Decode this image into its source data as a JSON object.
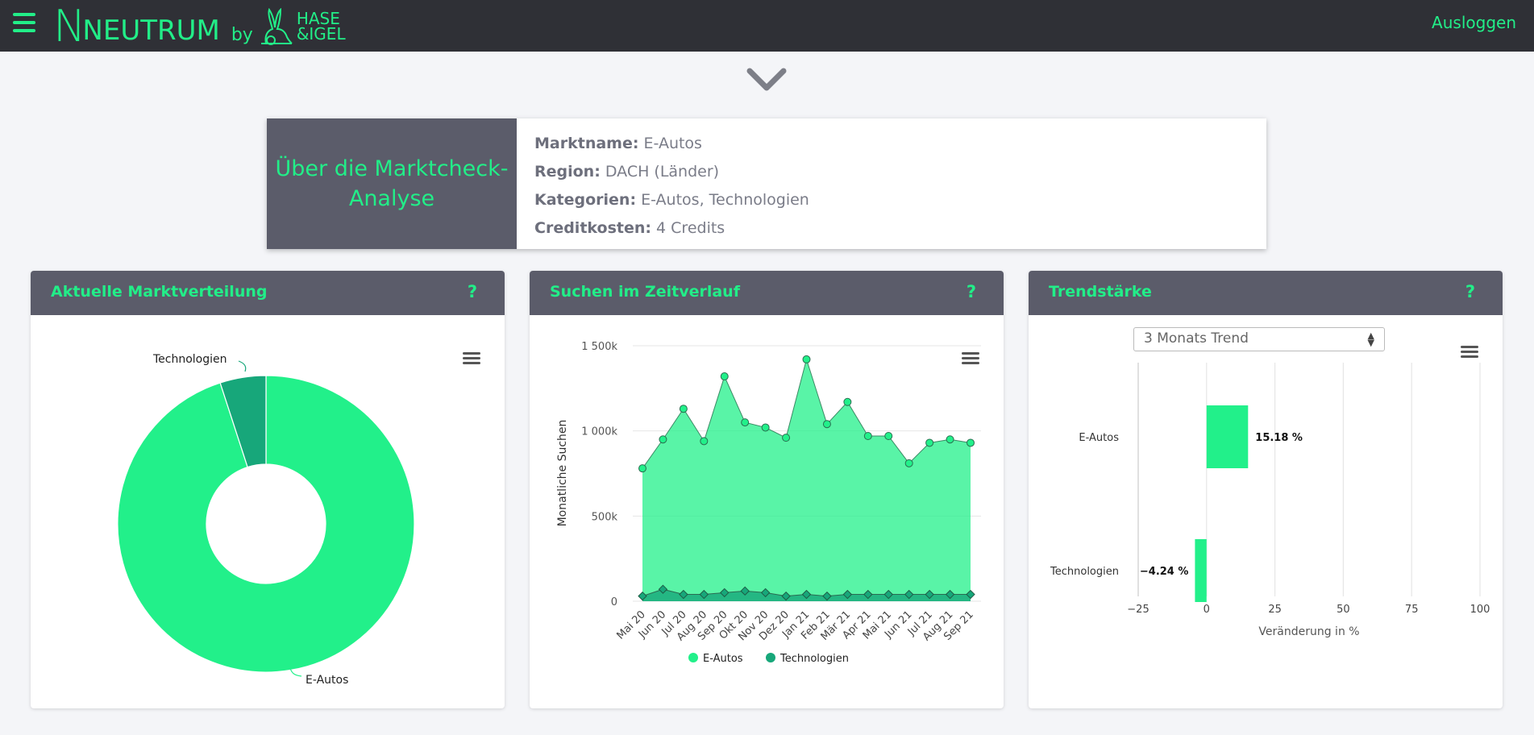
{
  "header": {
    "logo_letter": "N",
    "logo_word": "NEUTRUM",
    "logo_by": "by",
    "logo_partner_line1": "HASE",
    "logo_partner_line2": "&IGEL",
    "logout_label": "Ausloggen",
    "menu_icon": "hamburger-icon",
    "accent_color": "#22ee88",
    "bar_color": "#2f3036"
  },
  "info": {
    "title": "Über die Marktcheck-Analyse",
    "rows": [
      {
        "label": "Marktname:",
        "value": "E-Autos"
      },
      {
        "label": "Region:",
        "value": "DACH (Länder)"
      },
      {
        "label": "Kategorien:",
        "value": "E-Autos, Technologien"
      },
      {
        "label": "Creditkosten:",
        "value": "4 Credits"
      }
    ]
  },
  "panels": {
    "distribution": {
      "title": "Aktuelle Marktverteilung",
      "help": "?"
    },
    "searches": {
      "title": "Suchen im Zeitverlauf",
      "help": "?"
    },
    "trend": {
      "title": "Trendstärke",
      "help": "?",
      "select_value": "3 Monats Trend"
    }
  },
  "chart_data": [
    {
      "type": "pie",
      "categories": [
        "E-Autos",
        "Technologien"
      ],
      "values": [
        95,
        5
      ],
      "colors": [
        "#22f08a",
        "#17a77a"
      ]
    },
    {
      "type": "area",
      "categories": [
        "Mai 20",
        "Jun 20",
        "Jul 20",
        "Aug 20",
        "Sep 20",
        "Okt 20",
        "Nov 20",
        "Dez 20",
        "Jan 21",
        "Feb 21",
        "Mär 21",
        "Apr 21",
        "Mai 21",
        "Jun 21",
        "Jul 21",
        "Aug 21",
        "Sep 21"
      ],
      "series": [
        {
          "name": "E-Autos",
          "color": "#22f08a",
          "values": [
            780000,
            950000,
            1130000,
            940000,
            1320000,
            1050000,
            1020000,
            960000,
            1420000,
            1040000,
            1170000,
            970000,
            970000,
            810000,
            930000,
            950000,
            930000
          ]
        },
        {
          "name": "Technologien",
          "color": "#17a77a",
          "values": [
            30000,
            70000,
            40000,
            40000,
            50000,
            60000,
            50000,
            30000,
            40000,
            30000,
            40000,
            40000,
            40000,
            40000,
            40000,
            40000,
            40000
          ]
        }
      ],
      "ylabel": "Monatliche Suchen",
      "ylim": [
        0,
        1500000
      ],
      "yticks": [
        {
          "v": 0,
          "label": "0"
        },
        {
          "v": 500000,
          "label": "500k"
        },
        {
          "v": 1000000,
          "label": "1 000k"
        },
        {
          "v": 1500000,
          "label": "1 500k"
        }
      ],
      "legend": "bottom"
    },
    {
      "type": "bar",
      "orientation": "horizontal",
      "categories": [
        "E-Autos",
        "Technologien"
      ],
      "values": [
        15.18,
        -4.24
      ],
      "data_labels": [
        "15.18 %",
        "−4.24 %"
      ],
      "xlabel": "Veränderung in %",
      "xlim": [
        -25,
        100
      ],
      "xticks": [
        "−25",
        "0",
        "25",
        "50",
        "75",
        "100"
      ],
      "color": "#22f08a"
    }
  ]
}
